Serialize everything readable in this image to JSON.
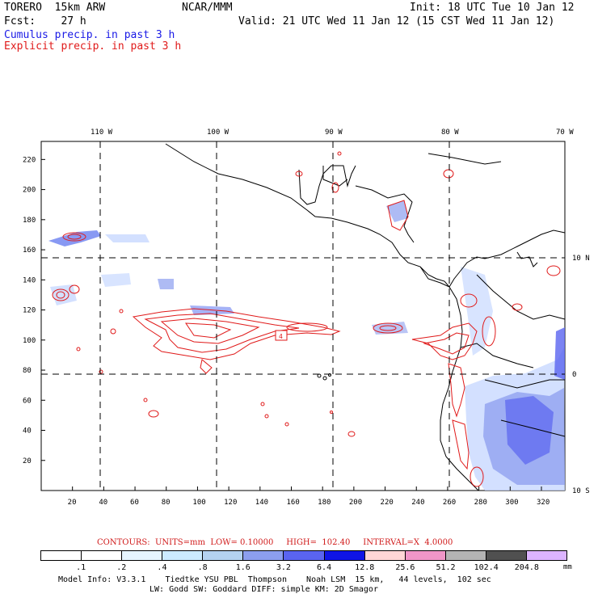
{
  "header": {
    "model_name": "TORERO  15km ARW",
    "center": "NCAR/MMM",
    "init": "Init: 18 UTC Tue 10 Jan 12",
    "fcst_label": "Fcst:    27 h",
    "valid": "Valid: 21 UTC Wed 11 Jan 12 (15 CST Wed 11 Jan 12)",
    "field_cumulus": "Cumulus precip. in past 3 h",
    "field_explicit": "Explicit precip. in past 3 h"
  },
  "map": {
    "x_ticks": [
      "20",
      "40",
      "60",
      "80",
      "100",
      "120",
      "140",
      "160",
      "180",
      "200",
      "220",
      "240",
      "260",
      "280",
      "300",
      "320"
    ],
    "y_ticks": [
      "220",
      "200",
      "180",
      "160",
      "140",
      "120",
      "100",
      "80",
      "60",
      "40",
      "20"
    ],
    "lon_labels": [
      "110 W",
      "100 W",
      "90 W",
      "80 W",
      "70 W"
    ],
    "lat_labels": [
      "10 N",
      "0",
      "10 S"
    ],
    "contour_label": "4",
    "colors": {
      "coast": "#000000",
      "explicit_contour": "#e01a1a",
      "cumulus_light": "#c8d8ff",
      "cumulus_mid": "#6a7ff0",
      "cumulus_dark": "#1a28e0"
    }
  },
  "contours": {
    "text": "CONTOURS:  UNITS=mm  LOW= 0.10000     HIGH=  102.40     INTERVAL=X  4.0000"
  },
  "colorbar": {
    "labels": [
      ".1",
      ".2",
      ".4",
      ".8",
      "1.6",
      "3.2",
      "6.4",
      "12.8",
      "25.6",
      "51.2",
      "102.4",
      "204.8"
    ],
    "units": "mm",
    "colors": [
      "#ffffff",
      "#ffffff",
      "#e6f5ff",
      "#ccebff",
      "#b4d2f0",
      "#8c9eef",
      "#5a64f0",
      "#0f14e6",
      "#ffd6d6",
      "#f096c8",
      "#b4b4b4",
      "#505050",
      "#dcb4ff"
    ]
  },
  "model_info": {
    "line1": "Model Info: V3.3.1    Tiedtke YSU PBL  Thompson    Noah LSM  15 km,   44 levels,  102 sec",
    "line2": "LW: Godd SW: Goddard DIFF: simple KM: 2D Smagor"
  }
}
